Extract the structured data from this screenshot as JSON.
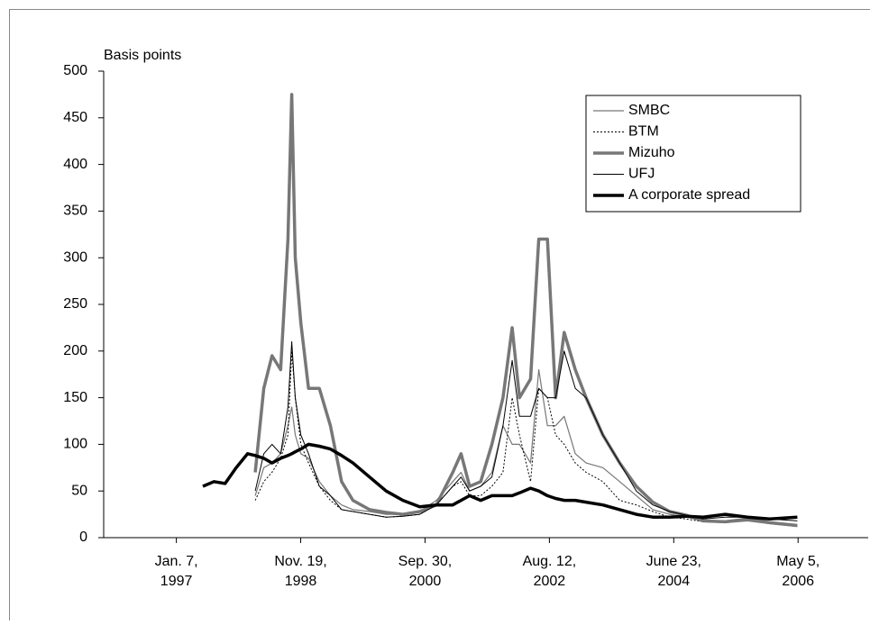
{
  "chart_data": {
    "type": "line",
    "y_label": "Basis points",
    "x": [
      "1997-06-01",
      "1997-08-01",
      "1997-10-01",
      "1997-12-01",
      "1998-02-01",
      "1998-03-15",
      "1998-05-01",
      "1998-06-15",
      "1998-08-01",
      "1998-09-10",
      "1998-10-01",
      "1998-10-20",
      "1998-11-20",
      "1999-01-01",
      "1999-03-01",
      "1999-05-01",
      "1999-07-01",
      "1999-09-01",
      "1999-12-01",
      "2000-03-01",
      "2000-06-01",
      "2000-09-01",
      "2000-12-01",
      "2001-03-01",
      "2001-04-15",
      "2001-06-01",
      "2001-08-01",
      "2001-10-01",
      "2001-12-01",
      "2002-01-20",
      "2002-03-01",
      "2002-05-01",
      "2002-06-15",
      "2002-08-01",
      "2002-09-15",
      "2002-11-01",
      "2003-01-01",
      "2003-03-01",
      "2003-06-01",
      "2003-09-01",
      "2003-12-01",
      "2004-03-01",
      "2004-06-01",
      "2004-09-01",
      "2004-12-01",
      "2005-04-01",
      "2005-08-01",
      "2005-12-01",
      "2006-05-01"
    ],
    "series": [
      {
        "name": "SMBC",
        "color": "#777777",
        "line_width": 1.2,
        "dash": "none",
        "values": [
          null,
          null,
          null,
          null,
          null,
          45,
          75,
          80,
          90,
          120,
          140,
          110,
          90,
          85,
          60,
          45,
          35,
          30,
          28,
          25,
          25,
          28,
          40,
          60,
          70,
          50,
          55,
          70,
          120,
          100,
          100,
          80,
          180,
          120,
          120,
          130,
          90,
          80,
          75,
          60,
          45,
          30,
          25,
          22,
          18,
          16,
          18,
          15,
          12
        ]
      },
      {
        "name": "BTM",
        "color": "#000000",
        "line_width": 1,
        "dash": "2 2",
        "values": [
          null,
          null,
          null,
          null,
          null,
          40,
          60,
          70,
          85,
          110,
          200,
          150,
          100,
          80,
          55,
          40,
          30,
          28,
          25,
          22,
          23,
          25,
          35,
          55,
          60,
          45,
          45,
          55,
          70,
          150,
          110,
          60,
          160,
          150,
          110,
          100,
          80,
          70,
          60,
          40,
          35,
          28,
          22,
          20,
          17,
          16,
          20,
          15,
          14
        ]
      },
      {
        "name": "Mizuho",
        "color": "#777777",
        "line_width": 3.5,
        "dash": "none",
        "values": [
          null,
          null,
          null,
          null,
          null,
          70,
          160,
          195,
          180,
          320,
          475,
          300,
          230,
          160,
          160,
          120,
          60,
          40,
          30,
          27,
          25,
          28,
          35,
          70,
          90,
          55,
          60,
          100,
          150,
          225,
          150,
          170,
          320,
          320,
          150,
          220,
          180,
          150,
          110,
          80,
          55,
          38,
          28,
          24,
          18,
          17,
          20,
          16,
          13
        ]
      },
      {
        "name": "UFJ",
        "color": "#000000",
        "line_width": 1,
        "dash": "none",
        "values": [
          null,
          null,
          null,
          null,
          null,
          50,
          90,
          100,
          90,
          140,
          210,
          150,
          110,
          90,
          55,
          45,
          30,
          28,
          25,
          22,
          23,
          25,
          35,
          55,
          65,
          50,
          55,
          65,
          120,
          190,
          130,
          130,
          160,
          150,
          150,
          200,
          160,
          150,
          110,
          80,
          50,
          35,
          28,
          24,
          20,
          22,
          22,
          20,
          18
        ]
      },
      {
        "name": "A corporate spread",
        "color": "#000000",
        "line_width": 3.5,
        "dash": "none",
        "values": [
          55,
          60,
          58,
          75,
          90,
          88,
          85,
          80,
          85,
          88,
          90,
          92,
          95,
          100,
          98,
          95,
          88,
          80,
          65,
          50,
          40,
          33,
          35,
          35,
          40,
          45,
          40,
          45,
          45,
          45,
          48,
          53,
          50,
          45,
          42,
          40,
          40,
          38,
          35,
          30,
          25,
          22,
          22,
          23,
          22,
          25,
          22,
          20,
          22
        ]
      }
    ],
    "xlim": [
      "1995-12-06",
      "2007-05-24"
    ],
    "xticks": [
      {
        "value": "1997-01-07",
        "label": [
          "Jan. 7,",
          "1997"
        ]
      },
      {
        "value": "1998-11-19",
        "label": [
          "Nov. 19,",
          "1998"
        ]
      },
      {
        "value": "2000-09-30",
        "label": [
          "Sep. 30,",
          "2000"
        ]
      },
      {
        "value": "2002-08-12",
        "label": [
          "Aug. 12,",
          "2002"
        ]
      },
      {
        "value": "2004-06-23",
        "label": [
          "June 23,",
          "2004"
        ]
      },
      {
        "value": "2006-05-05",
        "label": [
          "May 5,",
          "2006"
        ]
      }
    ],
    "ylim": [
      0,
      500
    ],
    "yticks": [
      0,
      50,
      100,
      150,
      200,
      250,
      300,
      350,
      400,
      450,
      500
    ],
    "legend": "upper right"
  }
}
